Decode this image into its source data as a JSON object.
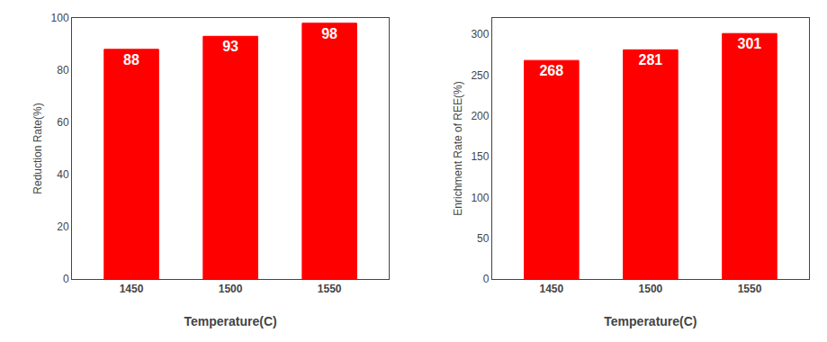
{
  "chart_data": [
    {
      "type": "bar",
      "categories": [
        "1450",
        "1500",
        "1550"
      ],
      "values": [
        88,
        93,
        98
      ],
      "xlabel": "Temperature(C)",
      "ylabel": "Reduction Rate(%)",
      "ylim": [
        0,
        100
      ],
      "yticks": [
        0,
        20,
        40,
        60,
        80,
        100
      ],
      "color": "#FF0000",
      "data_labels": true,
      "grid": false
    },
    {
      "type": "bar",
      "categories": [
        "1450",
        "1500",
        "1550"
      ],
      "values": [
        268,
        281,
        301
      ],
      "xlabel": "Temperature(C)",
      "ylabel": "Enrichment Rate of REE(%)",
      "ylim": [
        0,
        320
      ],
      "yticks": [
        0,
        50,
        100,
        150,
        200,
        250,
        300
      ],
      "color": "#FF0000",
      "data_labels": true,
      "grid": false
    }
  ]
}
